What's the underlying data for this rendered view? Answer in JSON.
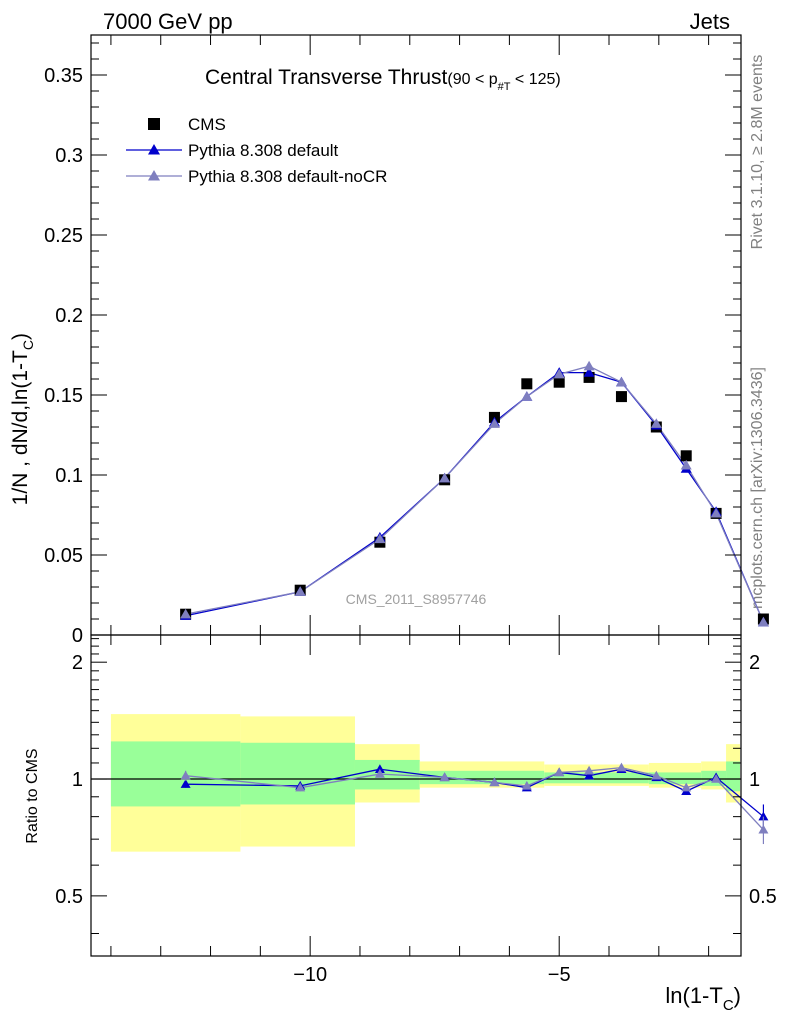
{
  "header": {
    "left": "7000 GeV pp",
    "right": "Jets"
  },
  "side_labels": {
    "rivet": "Rivet 3.1.10, ≥ 2.8M events",
    "mcplots": "mcplots.cern.ch [arXiv:1306.3436]"
  },
  "chart_data": [
    {
      "type": "scatter",
      "title": "Central Transverse Thrust",
      "title_cut": "(90 < p",
      "title_cut_sub": "#T",
      "title_cut_end": " < 125)",
      "ylabel": "1/N , dN/d,ln(1-T",
      "ylabel_sub": "C",
      "ylabel_end": ")",
      "watermark": "CMS_2011_S8957746",
      "xlim": [
        -14.4,
        -1.35
      ],
      "ylim": [
        0,
        0.375
      ],
      "y_ticks": [
        {
          "v": 0,
          "label": "0"
        },
        {
          "v": 0.05,
          "label": "0.05"
        },
        {
          "v": 0.1,
          "label": "0.1"
        },
        {
          "v": 0.15,
          "label": "0.15"
        },
        {
          "v": 0.2,
          "label": "0.2"
        },
        {
          "v": 0.25,
          "label": "0.25"
        },
        {
          "v": 0.3,
          "label": "0.3"
        },
        {
          "v": 0.35,
          "label": "0.35"
        }
      ],
      "legend_position": "top-left",
      "series": [
        {
          "name": "CMS",
          "color": "#000000",
          "marker": "square",
          "x": [
            -12.5,
            -10.2,
            -8.6,
            -7.3,
            -6.3,
            -5.65,
            -5.0,
            -4.4,
            -3.75,
            -3.05,
            -2.45,
            -1.85,
            -0.9
          ],
          "y": [
            0.013,
            0.028,
            0.058,
            0.097,
            0.136,
            0.157,
            0.158,
            0.161,
            0.149,
            0.13,
            0.112,
            0.076,
            0.01
          ]
        },
        {
          "name": "Pythia 8.308 default",
          "color": "#0000cc",
          "marker": "triangle",
          "x": [
            -12.5,
            -10.2,
            -8.6,
            -7.3,
            -6.3,
            -5.65,
            -5.0,
            -4.4,
            -3.75,
            -3.05,
            -2.45,
            -1.85,
            -0.9
          ],
          "y": [
            0.012,
            0.027,
            0.061,
            0.098,
            0.133,
            0.149,
            0.164,
            0.164,
            0.158,
            0.131,
            0.104,
            0.077,
            0.008
          ]
        },
        {
          "name": "Pythia 8.308 default-noCR",
          "color": "#7f7fbf",
          "marker": "triangle",
          "x": [
            -12.5,
            -10.2,
            -8.6,
            -7.3,
            -6.3,
            -5.65,
            -5.0,
            -4.4,
            -3.75,
            -3.05,
            -2.45,
            -1.85,
            -0.9
          ],
          "y": [
            0.013,
            0.027,
            0.06,
            0.098,
            0.132,
            0.149,
            0.163,
            0.168,
            0.158,
            0.132,
            0.106,
            0.076,
            0.008
          ]
        }
      ]
    },
    {
      "type": "scatter",
      "ylabel": "Ratio to CMS",
      "xlabel": "ln(1-T",
      "xlabel_sub": "C",
      "xlabel_end": ")",
      "xlim": [
        -14.4,
        -1.35
      ],
      "ylim": [
        0.35,
        2.35
      ],
      "y_ticks": [
        {
          "v": 0.5,
          "label": "0.5"
        },
        {
          "v": 1,
          "label": "1"
        },
        {
          "v": 2,
          "label": "2"
        }
      ],
      "x_ticks": [
        {
          "v": -10,
          "label": "−10"
        },
        {
          "v": -5,
          "label": "−5"
        }
      ],
      "band_colors": {
        "inner": "#99ff99",
        "outer": "#ffff99"
      },
      "bands": [
        {
          "x0": -14.0,
          "x1": -11.4,
          "inner": [
            0.85,
            1.25
          ],
          "outer": [
            0.65,
            1.47
          ]
        },
        {
          "x0": -11.4,
          "x1": -9.1,
          "inner": [
            0.86,
            1.24
          ],
          "outer": [
            0.67,
            1.45
          ]
        },
        {
          "x0": -9.1,
          "x1": -7.8,
          "inner": [
            0.94,
            1.12
          ],
          "outer": [
            0.87,
            1.23
          ]
        },
        {
          "x0": -7.8,
          "x1": -5.3,
          "inner": [
            0.97,
            1.05
          ],
          "outer": [
            0.95,
            1.11
          ]
        },
        {
          "x0": -5.3,
          "x1": -3.2,
          "inner": [
            0.975,
            1.04
          ],
          "outer": [
            0.96,
            1.09
          ]
        },
        {
          "x0": -3.2,
          "x1": -2.15,
          "inner": [
            0.97,
            1.04
          ],
          "outer": [
            0.95,
            1.1
          ]
        },
        {
          "x0": -2.15,
          "x1": -1.65,
          "inner": [
            0.96,
            1.05
          ],
          "outer": [
            0.94,
            1.11
          ]
        },
        {
          "x0": -1.65,
          "x1": -1.35,
          "inner": [
            0.93,
            1.11
          ],
          "outer": [
            0.87,
            1.23
          ]
        }
      ],
      "series": [
        {
          "name": "Pythia 8.308 default",
          "color": "#0000cc",
          "x": [
            -12.5,
            -10.2,
            -8.6,
            -7.3,
            -6.3,
            -5.65,
            -5.0,
            -4.4,
            -3.75,
            -3.05,
            -2.45,
            -1.85,
            -0.9
          ],
          "y": [
            0.97,
            0.96,
            1.06,
            1.01,
            0.98,
            0.95,
            1.04,
            1.02,
            1.06,
            1.01,
            0.93,
            1.01,
            0.8
          ],
          "err": [
            0.02,
            0.02,
            0.02,
            0.01,
            0.01,
            0.01,
            0.01,
            0.01,
            0.01,
            0.01,
            0.01,
            0.02,
            0.06
          ]
        },
        {
          "name": "Pythia 8.308 default-noCR",
          "color": "#7f7fbf",
          "x": [
            -12.5,
            -10.2,
            -8.6,
            -7.3,
            -6.3,
            -5.65,
            -5.0,
            -4.4,
            -3.75,
            -3.05,
            -2.45,
            -1.85,
            -0.9
          ],
          "y": [
            1.02,
            0.95,
            1.03,
            1.01,
            0.98,
            0.96,
            1.04,
            1.05,
            1.07,
            1.02,
            0.95,
            1.0,
            0.74
          ],
          "err": [
            0.03,
            0.02,
            0.02,
            0.01,
            0.01,
            0.01,
            0.01,
            0.01,
            0.01,
            0.01,
            0.01,
            0.02,
            0.06
          ]
        }
      ]
    }
  ]
}
